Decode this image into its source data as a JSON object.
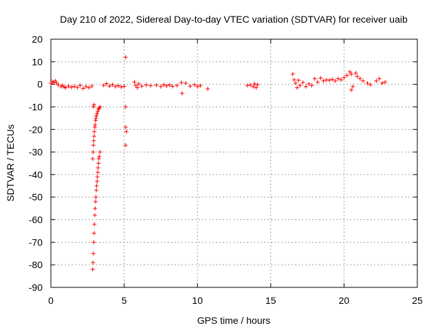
{
  "chart_data": {
    "type": "scatter",
    "title": "Day 210 of 2022, Sidereal Day-to-day VTEC variation (SDTVAR) for receiver uaib",
    "xlabel": "GPS time / hours",
    "ylabel": "SDTVAR / TECUs",
    "xlim": [
      0,
      25
    ],
    "ylim": [
      -90,
      20
    ],
    "xticks": [
      "0",
      "5",
      "10",
      "15",
      "20",
      "25"
    ],
    "yticks": [
      "20",
      "10",
      "0",
      "-10",
      "-20",
      "-30",
      "-40",
      "-50",
      "-60",
      "-70",
      "-80",
      "-90"
    ],
    "grid": true,
    "marker": "+",
    "color": "#ff0000",
    "series": [
      {
        "name": "SDTVAR",
        "points": [
          [
            0.0,
            0.5
          ],
          [
            0.1,
            1.2
          ],
          [
            0.2,
            0.8
          ],
          [
            0.3,
            1.5
          ],
          [
            0.4,
            0.6
          ],
          [
            0.5,
            -0.3
          ],
          [
            0.7,
            -1.0
          ],
          [
            0.8,
            -0.5
          ],
          [
            0.9,
            -1.2
          ],
          [
            1.0,
            -1.5
          ],
          [
            1.2,
            -0.8
          ],
          [
            1.4,
            -1.3
          ],
          [
            1.6,
            -0.9
          ],
          [
            1.8,
            -1.4
          ],
          [
            2.0,
            -0.5
          ],
          [
            2.2,
            -1.8
          ],
          [
            2.4,
            -1.0
          ],
          [
            2.6,
            -1.5
          ],
          [
            2.8,
            -0.8
          ],
          [
            2.85,
            -82
          ],
          [
            2.87,
            -79
          ],
          [
            2.9,
            -75
          ],
          [
            2.92,
            -70
          ],
          [
            2.95,
            -66
          ],
          [
            2.97,
            -62
          ],
          [
            3.0,
            -58
          ],
          [
            3.02,
            -55
          ],
          [
            3.05,
            -52
          ],
          [
            3.07,
            -50
          ],
          [
            3.1,
            -47
          ],
          [
            3.12,
            -45
          ],
          [
            3.15,
            -43
          ],
          [
            3.17,
            -41
          ],
          [
            3.2,
            -39
          ],
          [
            3.22,
            -37
          ],
          [
            3.25,
            -35
          ],
          [
            3.27,
            -33
          ],
          [
            3.3,
            -32
          ],
          [
            3.35,
            -30
          ],
          [
            2.85,
            -33
          ],
          [
            2.88,
            -30
          ],
          [
            2.9,
            -27
          ],
          [
            2.92,
            -25
          ],
          [
            2.95,
            -23
          ],
          [
            2.97,
            -21
          ],
          [
            3.0,
            -19
          ],
          [
            3.02,
            -18
          ],
          [
            3.05,
            -16
          ],
          [
            3.08,
            -15
          ],
          [
            3.1,
            -14
          ],
          [
            3.15,
            -13
          ],
          [
            3.2,
            -12
          ],
          [
            3.25,
            -11
          ],
          [
            3.3,
            -10.5
          ],
          [
            3.35,
            -10
          ],
          [
            2.9,
            -10
          ],
          [
            2.95,
            -9
          ],
          [
            3.6,
            -0.5
          ],
          [
            3.8,
            0.3
          ],
          [
            4.0,
            -0.8
          ],
          [
            4.2,
            -0.2
          ],
          [
            4.4,
            -1.0
          ],
          [
            4.6,
            -0.6
          ],
          [
            4.8,
            -1.2
          ],
          [
            5.0,
            -0.9
          ],
          [
            5.1,
            12
          ],
          [
            5.1,
            -10
          ],
          [
            5.1,
            -19
          ],
          [
            5.15,
            -21
          ],
          [
            5.1,
            -27
          ],
          [
            5.7,
            1.0
          ],
          [
            5.8,
            -0.5
          ],
          [
            5.9,
            -1.5
          ],
          [
            6.0,
            0.2
          ],
          [
            6.2,
            -0.8
          ],
          [
            6.5,
            -0.3
          ],
          [
            6.8,
            -0.6
          ],
          [
            7.2,
            -0.4
          ],
          [
            7.5,
            -1.0
          ],
          [
            7.7,
            -0.2
          ],
          [
            7.9,
            -0.7
          ],
          [
            8.1,
            -0.3
          ],
          [
            8.3,
            -0.9
          ],
          [
            8.6,
            -0.5
          ],
          [
            8.9,
            0.8
          ],
          [
            8.95,
            -4
          ],
          [
            9.2,
            0.5
          ],
          [
            9.5,
            -0.8
          ],
          [
            9.8,
            -0.2
          ],
          [
            10.0,
            -1.0
          ],
          [
            10.2,
            -0.6
          ],
          [
            10.7,
            -2.0
          ],
          [
            13.4,
            -0.5
          ],
          [
            13.6,
            -0.3
          ],
          [
            13.8,
            -1.0
          ],
          [
            13.9,
            0.2
          ],
          [
            14.0,
            -1.5
          ],
          [
            14.1,
            -0.2
          ],
          [
            16.5,
            4.5
          ],
          [
            16.6,
            2.0
          ],
          [
            16.7,
            0.5
          ],
          [
            16.8,
            -1.5
          ],
          [
            16.9,
            1.8
          ],
          [
            17.0,
            -0.5
          ],
          [
            17.2,
            0.8
          ],
          [
            17.4,
            -1.0
          ],
          [
            17.6,
            0.2
          ],
          [
            17.8,
            -0.5
          ],
          [
            18.0,
            2.5
          ],
          [
            18.2,
            1.0
          ],
          [
            18.4,
            2.8
          ],
          [
            18.6,
            1.5
          ],
          [
            18.8,
            2.0
          ],
          [
            19.0,
            1.8
          ],
          [
            19.2,
            2.2
          ],
          [
            19.4,
            1.5
          ],
          [
            19.6,
            2.5
          ],
          [
            19.8,
            2.0
          ],
          [
            20.0,
            3.0
          ],
          [
            20.2,
            4.0
          ],
          [
            20.4,
            5.5
          ],
          [
            20.5,
            -2.5
          ],
          [
            20.6,
            -1.0
          ],
          [
            20.5,
            4.5
          ],
          [
            20.8,
            5.0
          ],
          [
            20.9,
            3.5
          ],
          [
            21.1,
            2.5
          ],
          [
            21.3,
            1.5
          ],
          [
            21.6,
            0.5
          ],
          [
            21.8,
            -0.2
          ],
          [
            22.2,
            1.5
          ],
          [
            22.4,
            2.5
          ],
          [
            22.6,
            0.5
          ],
          [
            22.8,
            1.0
          ]
        ]
      }
    ]
  }
}
